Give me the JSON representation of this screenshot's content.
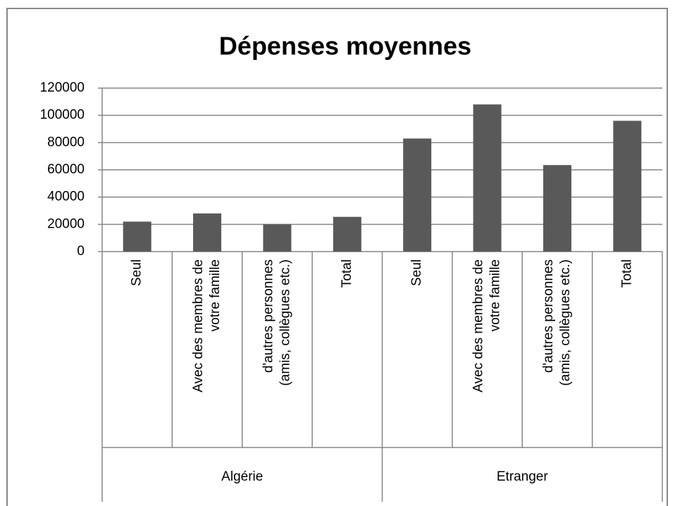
{
  "chart_data": {
    "type": "bar",
    "title": "Dépenses moyennes",
    "categories": [
      [
        "Seul"
      ],
      [
        "Avec des membres de",
        "votre famille"
      ],
      [
        "d'autres personnes",
        "(amis, collègues etc.)"
      ],
      [
        "Total"
      ],
      [
        "Seul"
      ],
      [
        "Avec des membres de",
        "votre famille"
      ],
      [
        "d'autres personnes",
        "(amis, collègues etc.)"
      ],
      [
        "Total"
      ]
    ],
    "groups": [
      "Algérie",
      "Etranger"
    ],
    "values": [
      22000,
      28000,
      20000,
      25500,
      83000,
      108000,
      63500,
      96000
    ],
    "color": "#595959",
    "ylim": [
      0,
      120000
    ],
    "yticks": [
      0,
      20000,
      40000,
      60000,
      80000,
      100000,
      120000
    ],
    "grid": true
  }
}
